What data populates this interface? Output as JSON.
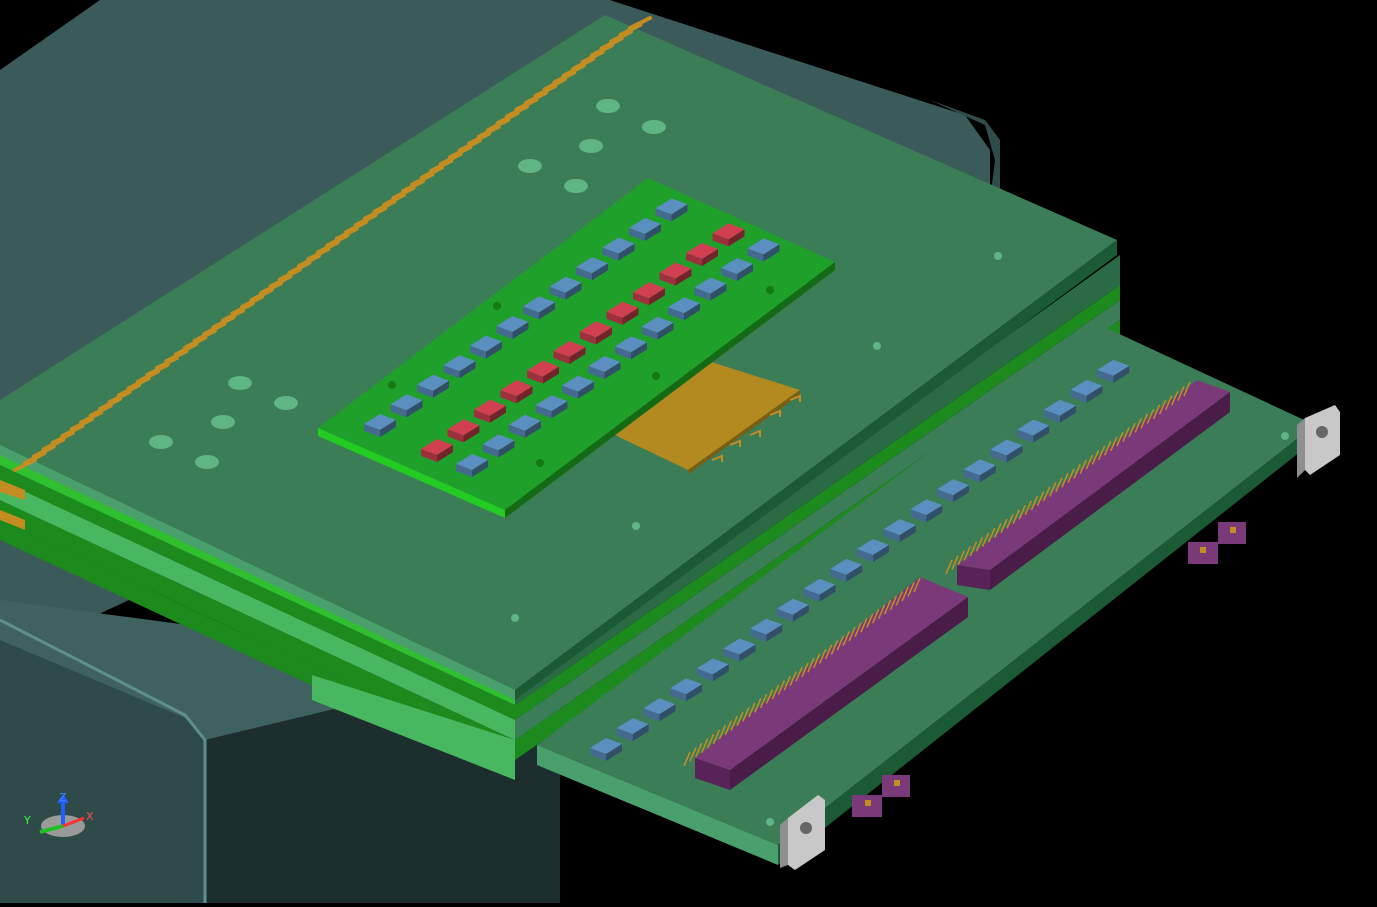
{
  "scene": {
    "colors": {
      "background": "#000000",
      "enclosure_top": "#3a5b59",
      "enclosure_side": "#2b4645",
      "enclosure_dark": "#1c2f2e",
      "enclosure_edge": "#5f8f8b",
      "board_top": "#3b7d57",
      "board_light": "#4aa06d",
      "board_edge": "#1d8a1d",
      "board_edge_light": "#2fbf2f",
      "daughter_board": "#1fa02a",
      "gold_pad": "#c38d22",
      "gold_block": "#b38a20",
      "blue_component": "#5b8fbf",
      "red_component": "#d04050",
      "connector": "#7a3a7a",
      "connector_dark": "#5a2358",
      "bracket": "#c8c8c8"
    }
  },
  "triad": {
    "x_label": "X",
    "y_label": "Y",
    "z_label": "Z"
  }
}
